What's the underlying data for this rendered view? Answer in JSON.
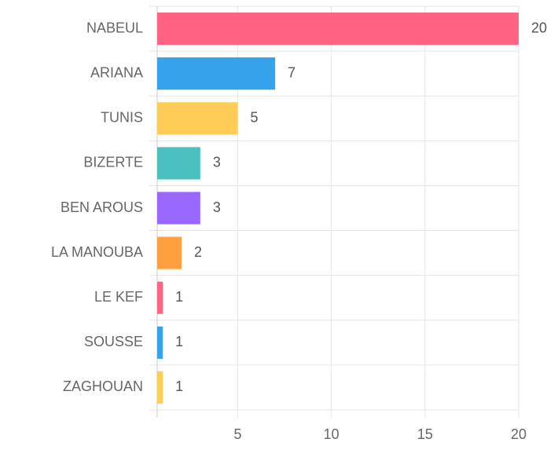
{
  "chart_data": {
    "type": "bar",
    "orientation": "horizontal",
    "categories": [
      "NABEUL",
      "ARIANA",
      "TUNIS",
      "BIZERTE",
      "BEN AROUS",
      "LA MANOUBA",
      "LE KEF",
      "SOUSSE",
      "ZAGHOUAN"
    ],
    "values": [
      20,
      7,
      5,
      3,
      3,
      2,
      1,
      1,
      1
    ],
    "colors": [
      "#ff6384",
      "#36a2eb",
      "#ffcd56",
      "#4bc0c0",
      "#9966ff",
      "#ff9f40",
      "#ff6384",
      "#36a2eb",
      "#ffcd56"
    ],
    "xlim": [
      0.7,
      20
    ],
    "xticks": [
      5,
      10,
      15,
      20
    ],
    "grid": true
  }
}
